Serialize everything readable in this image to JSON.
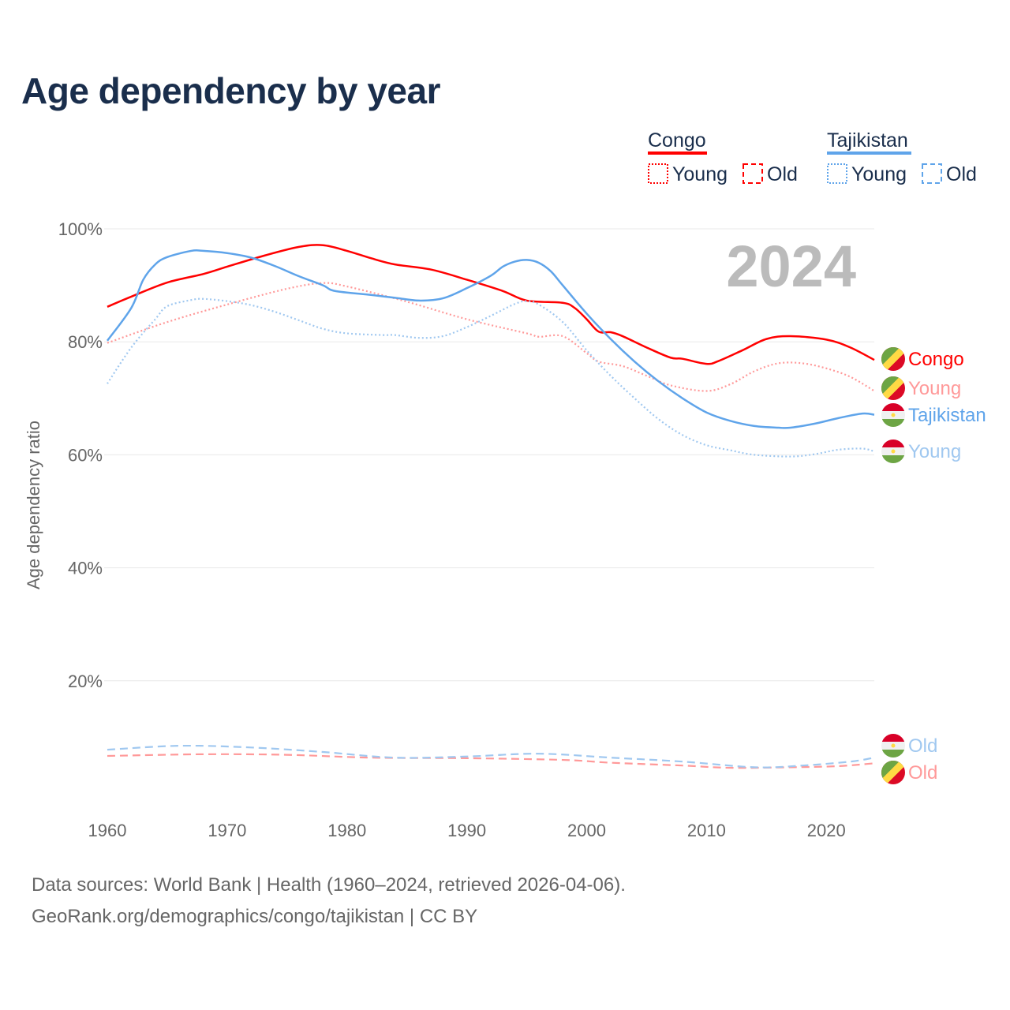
{
  "title": "Age dependency by year",
  "year_watermark": "2024",
  "legend": {
    "groups": [
      {
        "name": "Congo",
        "color": "#ff0000",
        "young": "Young",
        "old": "Old"
      },
      {
        "name": "Tajikistan",
        "color": "#5fa4ea",
        "young": "Young",
        "old": "Old"
      }
    ]
  },
  "footer": {
    "line1": "Data sources: World Bank | Health (1960–2024, retrieved 2026-04-06).",
    "line2": "GeoRank.org/demographics/congo/tajikistan | CC BY"
  },
  "chart_data": {
    "type": "line",
    "title": "Age dependency by year",
    "xlabel": "",
    "ylabel": "Age dependency ratio",
    "xlim": [
      1960,
      2024
    ],
    "ylim": [
      0,
      100
    ],
    "x_ticks": [
      "1960",
      "1970",
      "1980",
      "1990",
      "2000",
      "2010",
      "2020"
    ],
    "y_ticks": [
      "20%",
      "40%",
      "60%",
      "80%",
      "100%"
    ],
    "grid": true,
    "series": [
      {
        "name": "Congo",
        "label": "Congo",
        "color": "#ff0000",
        "dash": "solid",
        "x": [
          1960,
          1962,
          1965,
          1968,
          1970,
          1973,
          1976,
          1978,
          1980,
          1982,
          1984,
          1987,
          1990,
          1993,
          1995,
          1998,
          1999,
          2000,
          2001,
          2002,
          2003,
          2005,
          2007,
          2008,
          2010,
          2011,
          2013,
          2015,
          2017,
          2020,
          2022,
          2024
        ],
        "y": [
          86.2,
          88,
          90.5,
          92,
          93.3,
          95.2,
          96.8,
          97.1,
          96.1,
          94.8,
          93.7,
          92.8,
          91,
          89,
          87.3,
          86.9,
          86,
          84,
          81.8,
          81.7,
          81,
          79,
          77.2,
          77,
          76.1,
          76.6,
          78.5,
          80.5,
          81,
          80.4,
          79,
          76.8
        ]
      },
      {
        "name": "Congo Young",
        "label": "Young",
        "color": "#ff9999",
        "dash": "dotted",
        "x": [
          1960,
          1965,
          1970,
          1975,
          1978,
          1980,
          1985,
          1990,
          1995,
          1996,
          1998,
          2000,
          2001,
          2003,
          2005,
          2007,
          2010,
          2012,
          2014,
          2016,
          2018,
          2020,
          2022,
          2024
        ],
        "y": [
          79.8,
          83.5,
          86.6,
          89.4,
          90.4,
          89.8,
          87.1,
          84,
          81.5,
          80.9,
          81,
          78,
          76.5,
          75.7,
          74,
          72.3,
          71.3,
          72.5,
          74.8,
          76.2,
          76.2,
          75.3,
          73.8,
          71.3
        ]
      },
      {
        "name": "Congo Old",
        "label": "Old",
        "color": "#ff9999",
        "dash": "dashed",
        "x": [
          1960,
          1968,
          1975,
          1982,
          1990,
          1998,
          2002,
          2008,
          2012,
          2017,
          2021,
          2024
        ],
        "y": [
          6.7,
          7,
          6.9,
          6.4,
          6.3,
          6,
          5.5,
          5,
          4.6,
          4.7,
          4.9,
          5.4
        ]
      },
      {
        "name": "Tajikistan",
        "label": "Tajikistan",
        "color": "#5fa4ea",
        "dash": "solid",
        "x": [
          1960,
          1962,
          1963,
          1964,
          1965,
          1967,
          1968,
          1970,
          1972,
          1974,
          1976,
          1978,
          1979,
          1982,
          1984,
          1986,
          1988,
          1990,
          1992,
          1993,
          1994,
          1995,
          1996,
          1997,
          1998,
          2000,
          2002,
          2004,
          2006,
          2008,
          2010,
          2012,
          2014,
          2016,
          2017,
          2019,
          2021,
          2023,
          2024
        ],
        "y": [
          80.2,
          86,
          91,
          93.7,
          95,
          96.1,
          96.1,
          95.7,
          94.9,
          93.4,
          91.6,
          90,
          89,
          88.3,
          87.8,
          87.3,
          87.7,
          89.5,
          91.7,
          93.3,
          94.2,
          94.5,
          94,
          92.5,
          90,
          85,
          80.5,
          76.5,
          73,
          70,
          67.5,
          66,
          65.1,
          64.8,
          64.8,
          65.5,
          66.5,
          67.3,
          67.1
        ]
      },
      {
        "name": "Tajikistan Young",
        "label": "Young",
        "color": "#a0c8f0",
        "dash": "dotted",
        "x": [
          1960,
          1962,
          1964,
          1965,
          1967,
          1968,
          1970,
          1972,
          1974,
          1976,
          1978,
          1980,
          1983,
          1984,
          1986,
          1988,
          1990,
          1992,
          1994,
          1995,
          1996,
          1998,
          2000,
          2002,
          2004,
          2006,
          2008,
          2010,
          2012,
          2014,
          2017,
          2019,
          2021,
          2023,
          2024
        ],
        "y": [
          72.6,
          79,
          84,
          86.3,
          87.4,
          87.6,
          87.2,
          86.5,
          85.3,
          83.8,
          82.3,
          81.5,
          81.2,
          81.2,
          80.7,
          81,
          82.6,
          84.6,
          86.7,
          87.2,
          86.6,
          83.5,
          78.5,
          74,
          70,
          66.3,
          63.5,
          61.7,
          60.8,
          60,
          59.7,
          60.1,
          60.9,
          61.1,
          60.6
        ]
      },
      {
        "name": "Tajikistan Old",
        "label": "Old",
        "color": "#a0c8f0",
        "dash": "dashed",
        "x": [
          1960,
          1966,
          1972,
          1978,
          1984,
          1990,
          1996,
          2002,
          2008,
          2014,
          2018,
          2022,
          2024
        ],
        "y": [
          7.8,
          8.5,
          8.2,
          7.4,
          6.4,
          6.6,
          7.1,
          6.4,
          5.7,
          4.7,
          5,
          5.7,
          6.4
        ]
      }
    ]
  }
}
